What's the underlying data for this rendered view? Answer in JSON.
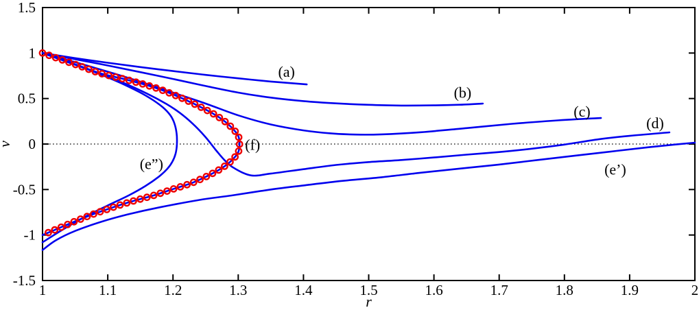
{
  "figure": {
    "background": "#ffffff",
    "frame_color": "#000000"
  },
  "chart_data": {
    "type": "line",
    "title": "",
    "xlabel": "r",
    "ylabel": "v",
    "xlim": [
      1,
      2
    ],
    "ylim": [
      -1.5,
      1.5
    ],
    "grid": false,
    "legend": "none",
    "x_ticks": [
      1,
      1.1,
      1.2,
      1.3,
      1.4,
      1.5,
      1.6,
      1.7,
      1.8,
      1.9,
      2
    ],
    "x_tick_labels": [
      "1",
      "1.1",
      "1.2",
      "1.3",
      "1.4",
      "1.5",
      "1.6",
      "1.7",
      "1.8",
      "1.9",
      "2"
    ],
    "y_ticks": [
      -1.5,
      -1,
      -0.5,
      0,
      0.5,
      1,
      1.5
    ],
    "y_tick_labels": [
      "-1.5",
      "-1",
      "-0.5",
      "0",
      "0.5",
      "1",
      "1.5"
    ],
    "zero_line": {
      "v": 0,
      "style": "dotted",
      "color": "#000000"
    },
    "colors": {
      "curves": "#0000ee",
      "marker": "#ee0000",
      "axis": "#000000"
    },
    "series": [
      {
        "name": "a",
        "tag": "(a)",
        "color": "#0000ee",
        "label_at": [
          1.374,
          0.8
        ],
        "points": [
          [
            1.0,
            1.0
          ],
          [
            1.05,
            0.944
          ],
          [
            1.1,
            0.893
          ],
          [
            1.15,
            0.846
          ],
          [
            1.2,
            0.802
          ],
          [
            1.25,
            0.76
          ],
          [
            1.3,
            0.722
          ],
          [
            1.35,
            0.687
          ],
          [
            1.405,
            0.655
          ]
        ]
      },
      {
        "name": "b",
        "tag": "(b)",
        "color": "#0000ee",
        "label_at": [
          1.644,
          0.57
        ],
        "points": [
          [
            1.0,
            1.0
          ],
          [
            1.05,
            0.932
          ],
          [
            1.1,
            0.863
          ],
          [
            1.15,
            0.79
          ],
          [
            1.2,
            0.715
          ],
          [
            1.25,
            0.638
          ],
          [
            1.3,
            0.565
          ],
          [
            1.35,
            0.51
          ],
          [
            1.4,
            0.472
          ],
          [
            1.45,
            0.447
          ],
          [
            1.5,
            0.431
          ],
          [
            1.55,
            0.423
          ],
          [
            1.6,
            0.425
          ],
          [
            1.64,
            0.432
          ],
          [
            1.675,
            0.445
          ]
        ]
      },
      {
        "name": "c",
        "tag": "(c)",
        "color": "#0000ee",
        "label_at": [
          1.827,
          0.36
        ],
        "points": [
          [
            1.0,
            1.0
          ],
          [
            1.05,
            0.9
          ],
          [
            1.1,
            0.795
          ],
          [
            1.15,
            0.685
          ],
          [
            1.2,
            0.565
          ],
          [
            1.25,
            0.445
          ],
          [
            1.3,
            0.315
          ],
          [
            1.35,
            0.215
          ],
          [
            1.4,
            0.15
          ],
          [
            1.44,
            0.118
          ],
          [
            1.48,
            0.104
          ],
          [
            1.52,
            0.106
          ],
          [
            1.58,
            0.13
          ],
          [
            1.65,
            0.175
          ],
          [
            1.72,
            0.222
          ],
          [
            1.79,
            0.26
          ],
          [
            1.856,
            0.286
          ]
        ]
      },
      {
        "name": "d",
        "tag": "(d)",
        "color": "#0000ee",
        "label_at": [
          1.939,
          0.235
        ],
        "points": [
          [
            1.0,
            1.0
          ],
          [
            1.04,
            0.9
          ],
          [
            1.08,
            0.795
          ],
          [
            1.12,
            0.685
          ],
          [
            1.16,
            0.555
          ],
          [
            1.19,
            0.44
          ],
          [
            1.21,
            0.345
          ],
          [
            1.23,
            0.225
          ],
          [
            1.25,
            0.075
          ],
          [
            1.265,
            -0.06
          ],
          [
            1.28,
            -0.185
          ],
          [
            1.295,
            -0.27
          ],
          [
            1.32,
            -0.345
          ],
          [
            1.35,
            -0.325
          ],
          [
            1.4,
            -0.277
          ],
          [
            1.45,
            -0.23
          ],
          [
            1.5,
            -0.198
          ],
          [
            1.55,
            -0.176
          ],
          [
            1.6,
            -0.148
          ],
          [
            1.65,
            -0.117
          ],
          [
            1.7,
            -0.088
          ],
          [
            1.75,
            -0.051
          ],
          [
            1.8,
            -0.006
          ],
          [
            1.85,
            0.05
          ],
          [
            1.9,
            0.09
          ],
          [
            1.961,
            0.128
          ]
        ]
      },
      {
        "name": "e-double-prime",
        "tag": "(e”)",
        "color": "#0000ee",
        "label_at": [
          1.167,
          -0.215
        ],
        "points": [
          [
            1.0,
            1.0
          ],
          [
            1.03,
            0.922
          ],
          [
            1.06,
            0.845
          ],
          [
            1.09,
            0.762
          ],
          [
            1.12,
            0.67
          ],
          [
            1.15,
            0.565
          ],
          [
            1.17,
            0.48
          ],
          [
            1.185,
            0.4
          ],
          [
            1.196,
            0.315
          ],
          [
            1.202,
            0.23
          ],
          [
            1.2055,
            0.12
          ],
          [
            1.206,
            0.0
          ],
          [
            1.204,
            -0.105
          ],
          [
            1.199,
            -0.195
          ],
          [
            1.191,
            -0.275
          ],
          [
            1.178,
            -0.36
          ],
          [
            1.158,
            -0.46
          ],
          [
            1.132,
            -0.565
          ],
          [
            1.1,
            -0.675
          ],
          [
            1.065,
            -0.8
          ],
          [
            1.03,
            -0.945
          ],
          [
            1.0,
            -1.08
          ]
        ]
      },
      {
        "name": "e-prime",
        "tag": "(e’)",
        "color": "#0000ee",
        "label_at": [
          1.878,
          -0.275
        ],
        "points": [
          [
            1.0,
            -1.165
          ],
          [
            1.02,
            -1.06
          ],
          [
            1.05,
            -0.955
          ],
          [
            1.09,
            -0.855
          ],
          [
            1.13,
            -0.775
          ],
          [
            1.18,
            -0.695
          ],
          [
            1.24,
            -0.615
          ],
          [
            1.29,
            -0.565
          ],
          [
            1.35,
            -0.5
          ],
          [
            1.4,
            -0.455
          ],
          [
            1.46,
            -0.405
          ],
          [
            1.52,
            -0.365
          ],
          [
            1.58,
            -0.315
          ],
          [
            1.64,
            -0.27
          ],
          [
            1.7,
            -0.225
          ],
          [
            1.76,
            -0.175
          ],
          [
            1.82,
            -0.125
          ],
          [
            1.88,
            -0.075
          ],
          [
            1.93,
            -0.035
          ],
          [
            1.97,
            -0.005
          ],
          [
            2.0,
            0.015
          ]
        ]
      },
      {
        "name": "f",
        "tag": "(f)",
        "color": "#0000ee",
        "label_at": [
          1.322,
          -0.005
        ],
        "markers": {
          "shape": "open-circle",
          "color": "#ee0000",
          "radius": 4.2,
          "stroke": 2.4,
          "spacing": 10.2
        },
        "points": [
          [
            1.0,
            1.0
          ],
          [
            1.03,
            0.925
          ],
          [
            1.06,
            0.85
          ],
          [
            1.09,
            0.775
          ],
          [
            1.13,
            0.705
          ],
          [
            1.17,
            0.625
          ],
          [
            1.2,
            0.545
          ],
          [
            1.23,
            0.45
          ],
          [
            1.26,
            0.34
          ],
          [
            1.28,
            0.245
          ],
          [
            1.292,
            0.165
          ],
          [
            1.3,
            0.09
          ],
          [
            1.302,
            0.0
          ],
          [
            1.3,
            -0.09
          ],
          [
            1.292,
            -0.165
          ],
          [
            1.28,
            -0.24
          ],
          [
            1.26,
            -0.325
          ],
          [
            1.23,
            -0.425
          ],
          [
            1.2,
            -0.495
          ],
          [
            1.17,
            -0.565
          ],
          [
            1.13,
            -0.645
          ],
          [
            1.09,
            -0.74
          ],
          [
            1.06,
            -0.82
          ],
          [
            1.03,
            -0.91
          ],
          [
            1.0,
            -1.0
          ]
        ]
      }
    ]
  }
}
